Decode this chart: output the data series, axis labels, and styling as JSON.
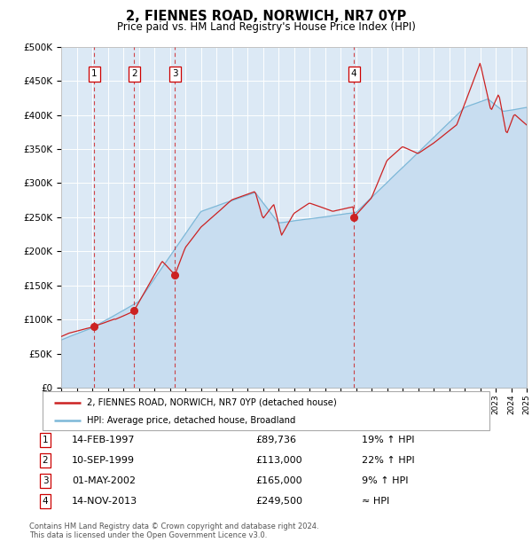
{
  "title": "2, FIENNES ROAD, NORWICH, NR7 0YP",
  "subtitle": "Price paid vs. HM Land Registry's House Price Index (HPI)",
  "footer": "Contains HM Land Registry data © Crown copyright and database right 2024.\nThis data is licensed under the Open Government Licence v3.0.",
  "legend_line1": "2, FIENNES ROAD, NORWICH, NR7 0YP (detached house)",
  "legend_line2": "HPI: Average price, detached house, Broadland",
  "sales": [
    {
      "num": 1,
      "date": "14-FEB-1997",
      "price": 89736,
      "pct": "19% ↑ HPI",
      "year": 1997.12
    },
    {
      "num": 2,
      "date": "10-SEP-1999",
      "price": 113000,
      "pct": "22% ↑ HPI",
      "year": 1999.71
    },
    {
      "num": 3,
      "date": "01-MAY-2002",
      "price": 165000,
      "pct": "9% ↑ HPI",
      "year": 2002.33
    },
    {
      "num": 4,
      "date": "14-NOV-2013",
      "price": 249500,
      "pct": "≈ HPI",
      "year": 2013.87
    }
  ],
  "hpi_fill_color": "#c8ddf0",
  "hpi_line_color": "#7db8d8",
  "price_color": "#cc2222",
  "plot_bg": "#dce9f5",
  "ylim": [
    0,
    500000
  ],
  "xlim_start": 1995,
  "xlim_end": 2025,
  "yticks": [
    0,
    50000,
    100000,
    150000,
    200000,
    250000,
    300000,
    350000,
    400000,
    450000,
    500000
  ]
}
